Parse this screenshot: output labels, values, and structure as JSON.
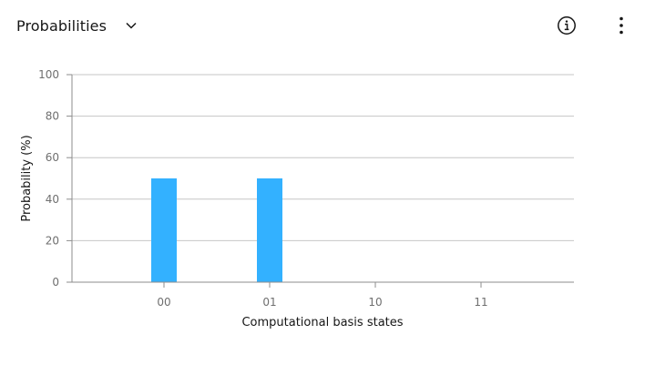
{
  "header": {
    "title": "Probabilities",
    "dropdown_icon": "chevron-down-icon",
    "info_icon": "information-icon",
    "menu_icon": "overflow-menu-vertical-icon"
  },
  "colors": {
    "bar": "#33b1ff",
    "grid": "#c6c6c6",
    "axis": "#8d8d8d",
    "text": "#161616",
    "tick_text": "#6f6f6f"
  },
  "chart_data": {
    "type": "bar",
    "title": "",
    "xlabel": "Computational basis states",
    "ylabel": "Probability (%)",
    "categories": [
      "00",
      "01",
      "10",
      "11"
    ],
    "values": [
      50,
      50,
      0,
      0
    ],
    "ylim": [
      0,
      100
    ],
    "yticks": [
      "0",
      "20",
      "40",
      "60",
      "80",
      "100"
    ],
    "grid": true,
    "legend": "none"
  }
}
